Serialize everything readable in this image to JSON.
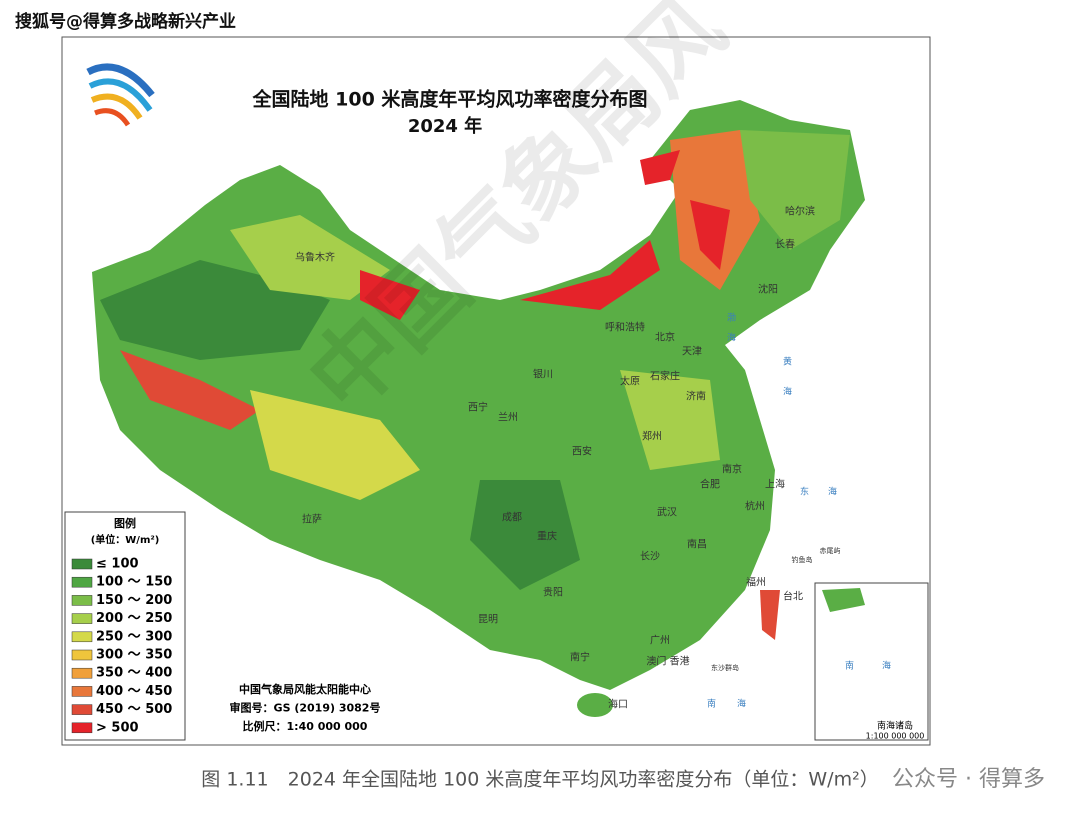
{
  "source_tag": "搜狐号@得算多战略新兴产业",
  "map": {
    "title": "全国陆地 100 米高度年平均风功率密度分布图",
    "subtitle": "2024 年",
    "watermark": "中国气象局风",
    "legend": {
      "title": "图例",
      "unit": "(单位：W/m²)",
      "items": [
        {
          "label": "≤ 100",
          "color": "#3b8a3a"
        },
        {
          "label": "100 ～ 150",
          "color": "#4fa643"
        },
        {
          "label": "150 ～ 200",
          "color": "#7bbd48"
        },
        {
          "label": "200 ～ 250",
          "color": "#a6cf4b"
        },
        {
          "label": "250 ～ 300",
          "color": "#d4d94a"
        },
        {
          "label": "300 ～ 350",
          "color": "#efc53c"
        },
        {
          "label": "350 ～ 400",
          "color": "#f0a03a"
        },
        {
          "label": "400 ～ 450",
          "color": "#e8773a"
        },
        {
          "label": "450 ～ 500",
          "color": "#e04a36"
        },
        {
          "label": "> 500",
          "color": "#e5232a"
        }
      ]
    },
    "credits": [
      "中国气象局风能太阳能中心",
      "审图号：GS (2019) 3082号",
      "比例尺：1:40 000 000"
    ],
    "cities": [
      "乌鲁木齐",
      "哈尔滨",
      "长春",
      "沈阳",
      "呼和浩特",
      "北京",
      "天津",
      "银川",
      "太原",
      "石家庄",
      "西宁",
      "兰州",
      "济南",
      "郑州",
      "西安",
      "南京",
      "合肥",
      "上海",
      "杭州",
      "拉萨",
      "成都",
      "武汉",
      "重庆",
      "南昌",
      "长沙",
      "福州",
      "台北",
      "贵阳",
      "昆明",
      "广州",
      "南宁",
      "澳门 香港",
      "海口"
    ],
    "seas": [
      "渤",
      "海",
      "黄",
      "海",
      "东",
      "海",
      "南",
      "海"
    ],
    "islands": [
      "钓鱼岛",
      "赤尾屿",
      "东沙群岛"
    ],
    "inset": {
      "title": "南海诸岛",
      "scale": "1:100 000 000",
      "sea": [
        "南",
        "海"
      ]
    }
  },
  "caption": "图 1.11　2024 年全国陆地 100 米高度年平均风功率密度分布（单位：W/m²）",
  "corner_tag": "公众号 · 得算多"
}
